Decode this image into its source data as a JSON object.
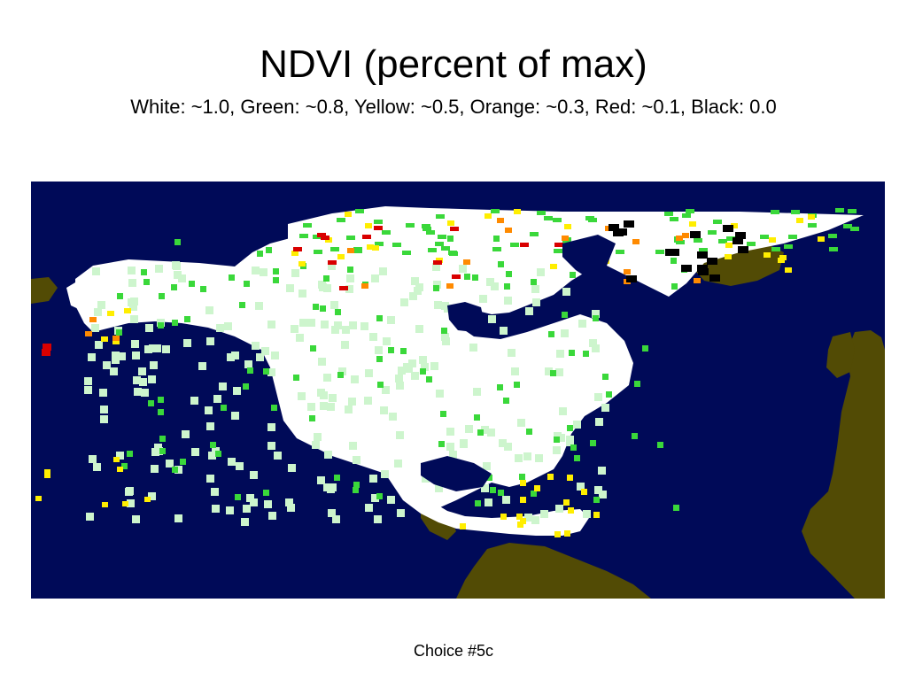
{
  "slide": {
    "title": "NDVI (percent of max)",
    "subtitle": "White: ~1.0, Green: ~0.8, Yellow: ~0.5, Orange: ~0.3, Red: ~0.1, Black: 0.0",
    "caption": "Choice #5c"
  },
  "map": {
    "colors": {
      "ocean": "#000a58",
      "land_no_data": "#524b05",
      "white": "#ffffff",
      "light_green": "#cdf5cd",
      "green": "#3ad83a",
      "yellow": "#ffee00",
      "orange": "#ff8a00",
      "red": "#d90000",
      "black": "#000000"
    }
  }
}
